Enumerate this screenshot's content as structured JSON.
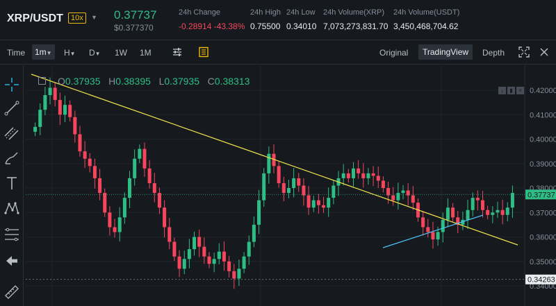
{
  "header": {
    "pair": "XRP/USDT",
    "leverage": "10x",
    "last_price": "0.37737",
    "last_price_usd": "$0.377370",
    "stats": [
      {
        "label": "24h Change",
        "value": "-0.28914 -43.38%"
      },
      {
        "label": "24h High",
        "value": "0.75500"
      },
      {
        "label": "24h Low",
        "value": "0.34010"
      },
      {
        "label": "24h Volume(XRP)",
        "value": "7,073,273,831.70"
      },
      {
        "label": "24h Volume(USDT)",
        "value": "3,450,468,704.62"
      }
    ]
  },
  "toolbar": {
    "time_label": "Time",
    "interval": "1m",
    "hour": "H",
    "day": "D",
    "week": "1W",
    "month": "1M",
    "views": [
      "Original",
      "TradingView",
      "Depth"
    ],
    "active_view": "TradingView"
  },
  "ohlc": {
    "o_label": "O",
    "o": "0.37935",
    "h_label": "H",
    "h": "0.38395",
    "l_label": "L",
    "l": "0.37935",
    "c_label": "C",
    "c": "0.38313"
  },
  "chart_data": {
    "type": "candlestick",
    "y_ticks": [
      "0.42000",
      "0.41000",
      "0.40000",
      "0.39000",
      "0.38000",
      "0.37000",
      "0.36000",
      "0.35000",
      "0.34000"
    ],
    "current_price_tag": "0.37737",
    "low_price_tag": "0.34263",
    "ylim": [
      0.34,
      0.425
    ],
    "closes": [
      0.405,
      0.412,
      0.418,
      0.421,
      0.416,
      0.41,
      0.414,
      0.409,
      0.402,
      0.395,
      0.392,
      0.389,
      0.384,
      0.378,
      0.37,
      0.364,
      0.362,
      0.368,
      0.376,
      0.384,
      0.392,
      0.396,
      0.388,
      0.382,
      0.378,
      0.372,
      0.364,
      0.358,
      0.352,
      0.347,
      0.351,
      0.355,
      0.36,
      0.356,
      0.352,
      0.349,
      0.351,
      0.354,
      0.35,
      0.346,
      0.343,
      0.347,
      0.352,
      0.358,
      0.365,
      0.375,
      0.386,
      0.394,
      0.389,
      0.382,
      0.378,
      0.38,
      0.384,
      0.381,
      0.377,
      0.372,
      0.375,
      0.373,
      0.372,
      0.376,
      0.381,
      0.384,
      0.386,
      0.384,
      0.388,
      0.386,
      0.384,
      0.386,
      0.385,
      0.383,
      0.38,
      0.377,
      0.375,
      0.378,
      0.379,
      0.377,
      0.374,
      0.368,
      0.364,
      0.362,
      0.359,
      0.362,
      0.367,
      0.372,
      0.368,
      0.365,
      0.367,
      0.371,
      0.376,
      0.375,
      0.371,
      0.369,
      0.37,
      0.371,
      0.369,
      0.372,
      0.378
    ]
  }
}
